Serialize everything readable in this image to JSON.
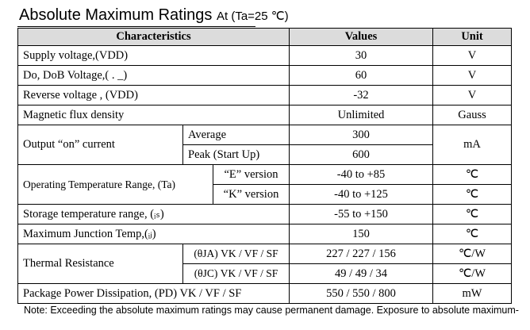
{
  "header": {
    "title": "Absolute Maximum Ratings",
    "subtitle": "At (Ta=25 ℃)"
  },
  "table": {
    "columns": [
      "Characteristics",
      "Values",
      "Unit"
    ],
    "rows": [
      [
        "Supply voltage,(VDD)",
        "30",
        "V"
      ],
      [
        "Do, DoB Voltage,( . _)",
        "60",
        "V"
      ],
      [
        "Reverse voltage , (VDD)",
        "-32",
        "V"
      ],
      [
        "Magnetic flux density",
        "Unlimited",
        "Gauss"
      ],
      [
        "Output “on” current",
        "Average",
        "300",
        "mA"
      ],
      [
        "Peak (Start Up)",
        "600"
      ],
      [
        "Operating Temperature Range, (Ta)",
        "“E” version",
        "-40 to +85",
        "℃"
      ],
      [
        "“K” version",
        "-40 to +125",
        "℃"
      ],
      [
        "Storage temperature range, (ᵢₛ)",
        "-55 to +150",
        "℃"
      ],
      [
        "Maximum Junction Temp,(ᵢⱼ)",
        "150",
        "℃"
      ],
      [
        "Thermal Resistance",
        "(θJA) VK / VF / SF",
        "227 / 227 / 156",
        "℃/W"
      ],
      [
        "(θJC) VK / VF / SF",
        "49 / 49 / 34",
        "℃/W"
      ],
      [
        "Package Power Dissipation, (PD) VK / VF / SF",
        "550 / 550 / 800",
        "mW"
      ]
    ]
  },
  "note": "Note: Exceeding the absolute maximum ratings may cause permanent damage. Exposure to absolute maximum-"
}
